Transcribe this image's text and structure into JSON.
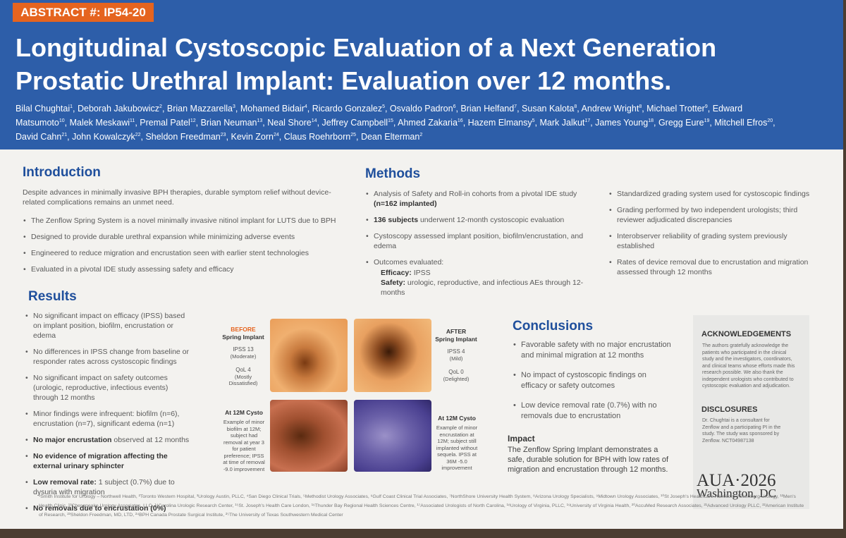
{
  "header": {
    "abstract_label": "ABSTRACT #: IP54-20",
    "title": [
      "Longitudinal Cystoscopic Evaluation of a Next Generation",
      "Prostatic Urethral Implant: Evaluation over 12 months."
    ],
    "authors": [
      {
        "name": "Bilal Chughtai",
        "sup": "1"
      },
      {
        "name": ", Deborah Jakubowicz",
        "sup": "2"
      },
      {
        "name": ", Brian Mazzarella",
        "sup": "3"
      },
      {
        "name": ", Mohamed Bidair",
        "sup": "4"
      },
      {
        "name": ", Ricardo Gonzalez",
        "sup": "5"
      },
      {
        "name": ", Osvaldo Padron",
        "sup": "6"
      },
      {
        "name": ", Brian Helfand",
        "sup": "7"
      },
      {
        "name": ", Susan Kalota",
        "sup": "8"
      },
      {
        "name": ", Andrew Wright",
        "sup": "8"
      },
      {
        "name": ", Michael Trotter",
        "sup": "9"
      },
      {
        "name": ", Edward Matsumoto",
        "sup": "10"
      },
      {
        "name": ", Malek Meskawi",
        "sup": "11"
      },
      {
        "name": ", Premal Patel",
        "sup": "12"
      },
      {
        "name": ", Brian Neuman",
        "sup": "13"
      },
      {
        "name": ", Neal Shore",
        "sup": "14"
      },
      {
        "name": ", Jeffrey Campbell",
        "sup": "15"
      },
      {
        "name": ", Ahmed Zakaria",
        "sup": "16"
      },
      {
        "name": ", Hazem Elmansy",
        "sup": "5"
      },
      {
        "name": ", Mark Jalkut",
        "sup": "17"
      },
      {
        "name": ", James Young",
        "sup": "18"
      },
      {
        "name": ", Gregg Eure",
        "sup": "19"
      },
      {
        "name": ", Mitchell Efros",
        "sup": "20"
      },
      {
        "name": ", David Cahn",
        "sup": "21"
      },
      {
        "name": ", John Kowalczyk",
        "sup": "22"
      },
      {
        "name": ", Sheldon Freedman",
        "sup": "23"
      },
      {
        "name": ", Kevin Zorn",
        "sup": "24"
      },
      {
        "name": ", Claus Roehrborn",
        "sup": "25"
      },
      {
        "name": ", Dean Elterman",
        "sup": "2"
      }
    ]
  },
  "introduction": {
    "heading": "Introduction",
    "paragraph": "Despite advances in minimally invasive BPH therapies, durable symptom relief without device-related complications remains an unmet need.",
    "bullets": [
      "The Zenflow Spring System is a novel minimally invasive nitinol implant for LUTS due to BPH",
      "Designed to provide durable urethral expansion while minimizing adverse events",
      "Engineered to reduce migration and encrustation seen with earlier stent technologies",
      "Evaluated in a pivotal IDE study assessing safety and efficacy"
    ]
  },
  "methods": {
    "heading": "Methods",
    "left": [
      [
        {
          "text": "Analysis of Safety and Roll-in cohorts from a pivotal IDE study "
        },
        {
          "text": "(n=162 implanted)",
          "bold": true
        }
      ],
      [
        {
          "text": "136 subjects",
          "bold": true
        },
        {
          "text": " underwent 12-month cystoscopic evaluation"
        }
      ],
      [
        {
          "text": "Cystoscopy assessed implant position, biofilm/encrustation, and edema"
        }
      ],
      [
        {
          "text": "Outcomes evaluated:"
        }
      ]
    ],
    "outcomes": [
      [
        {
          "text": "Efficacy:",
          "bold": true
        },
        {
          "text": " IPSS"
        }
      ],
      [
        {
          "text": "Safety:",
          "bold": true
        },
        {
          "text": " urologic, reproductive, and infectious AEs through 12-months"
        }
      ]
    ],
    "right": [
      "Standardized grading system used for cystoscopic findings",
      "Grading performed by two independent urologists; third reviewer adjudicated discrepancies",
      "Interobserver reliability of grading system previously established",
      "Rates of device removal due to encrustation and migration assessed through 12 months"
    ]
  },
  "results": {
    "heading": "Results",
    "bullets": [
      [
        {
          "text": "No significant impact on efficacy (IPSS) based on implant position, biofilm, encrustation or edema"
        }
      ],
      [
        {
          "text": "No differences in IPSS change from baseline or responder rates across cystoscopic findings"
        }
      ],
      [
        {
          "text": "No significant impact on safety outcomes (urologic, reproductive, infectious events) through 12 months"
        }
      ],
      [
        {
          "text": "Minor findings were infrequent: biofilm (n=6), encrustation (n=7), significant edema (n=1)"
        }
      ],
      [
        {
          "text": "No major encrustation",
          "bold": true
        },
        {
          "text": " observed at 12 months"
        }
      ],
      [
        {
          "text": "No evidence of migration affecting the external urinary sphincter",
          "bold": true
        }
      ],
      [
        {
          "text": "Low removal rate:",
          "bold": true
        },
        {
          "text": " 1 subject (0.7%) due to dysuria with migration"
        }
      ],
      [
        {
          "text": "No removals due to encrustation (0%)",
          "bold": true
        }
      ]
    ]
  },
  "figures": {
    "before": {
      "label": "BEFORE",
      "title": "Spring Implant",
      "ipss": "IPSS 13",
      "ipss_note": "(Moderate)",
      "qol": "QoL 4",
      "qol_note": "(Mostly Dissatisfied)"
    },
    "after": {
      "label": "AFTER",
      "title": "Spring Implant",
      "ipss": "IPSS 4",
      "ipss_note": "(Mild)",
      "qol": "QoL 0",
      "qol_note": "(Delighted)"
    },
    "cysto_left": {
      "title": "At 12M Cysto",
      "caption": "Example of minor biofilm at 12M; subject had removal at year 3 for patient preference; IPSS at time of removal -9.0 improvement"
    },
    "cysto_right": {
      "title": "At 12M Cysto",
      "caption": "Example of minor encrustation at 12M; subject still implanted without sequela. IPSS at 36M -5.0 improvement"
    }
  },
  "conclusions": {
    "heading": "Conclusions",
    "bullets": [
      "Favorable safety with no major encrustation and minimal migration at 12 months",
      "No impact of cystoscopic findings on efficacy or safety outcomes",
      "Low device removal rate (0.7%) with no removals due to encrustation"
    ],
    "impact_heading": "Impact",
    "impact_text": "The Zenflow Spring Implant demonstrates a safe, durable solution for BPH with low rates of migration and encrustation through 12 months."
  },
  "sidebar": {
    "ack_heading": "ACKNOWLEDGEMENTS",
    "ack_text": "The authors gratefully acknowledge the patients who participated in the clinical study and the investigators, coordinators, and clinical teams whose efforts made this research possible. We also thank the independent urologists who contributed to cystoscopic evaluation and adjudication.",
    "disc_heading": "DISCLOSURES",
    "disc_text": "Dr. Chughtai is a consultant for Zenflow and a participating PI in the study. The study was sponsored by Zenflow. NCT04987138",
    "meeting": "AUA·2026",
    "location": "Washington, DC"
  },
  "footer": {
    "affiliations": "¹Smith Institute for Urology – Northwell Health, ²Toronto Western Hospital, ³Urology Austin, PLLC, ⁴San Diego Clinical Trials, ⁵Methodist Urology Associates, ⁶Gulf Coast Clinical Trial Associates, ⁷NorthShore University Health System, ⁸Arizona Urology Specialists, ⁹Midtown Urology Associates, ¹⁰St Joseph's Healthcare Hamilton, ¹¹Steinberg Urology, ¹²Men's Health Clinic, ¹³Chesapeake Urology Associates, LLC, ¹⁴Carolina Urologic Research Center, ¹⁵St. Joseph's Health Care London, ¹⁶Thunder Bay Regional Health Sciences Centre, ¹⁷Associated Urologists of North Carolina, ¹⁸Urology of Virginia, PLLC, ¹⁹University of Virginia Health, ²⁰AccuMed Research Associates, ²¹Advanced Urology PLLC, ²²American Institute of Research, ²³Sheldon Freedman, MD, LTD, ²⁴BPH Canada Prostate Surgical Institute, ²⁵The University of Texas Southwestern Medical Center"
  }
}
